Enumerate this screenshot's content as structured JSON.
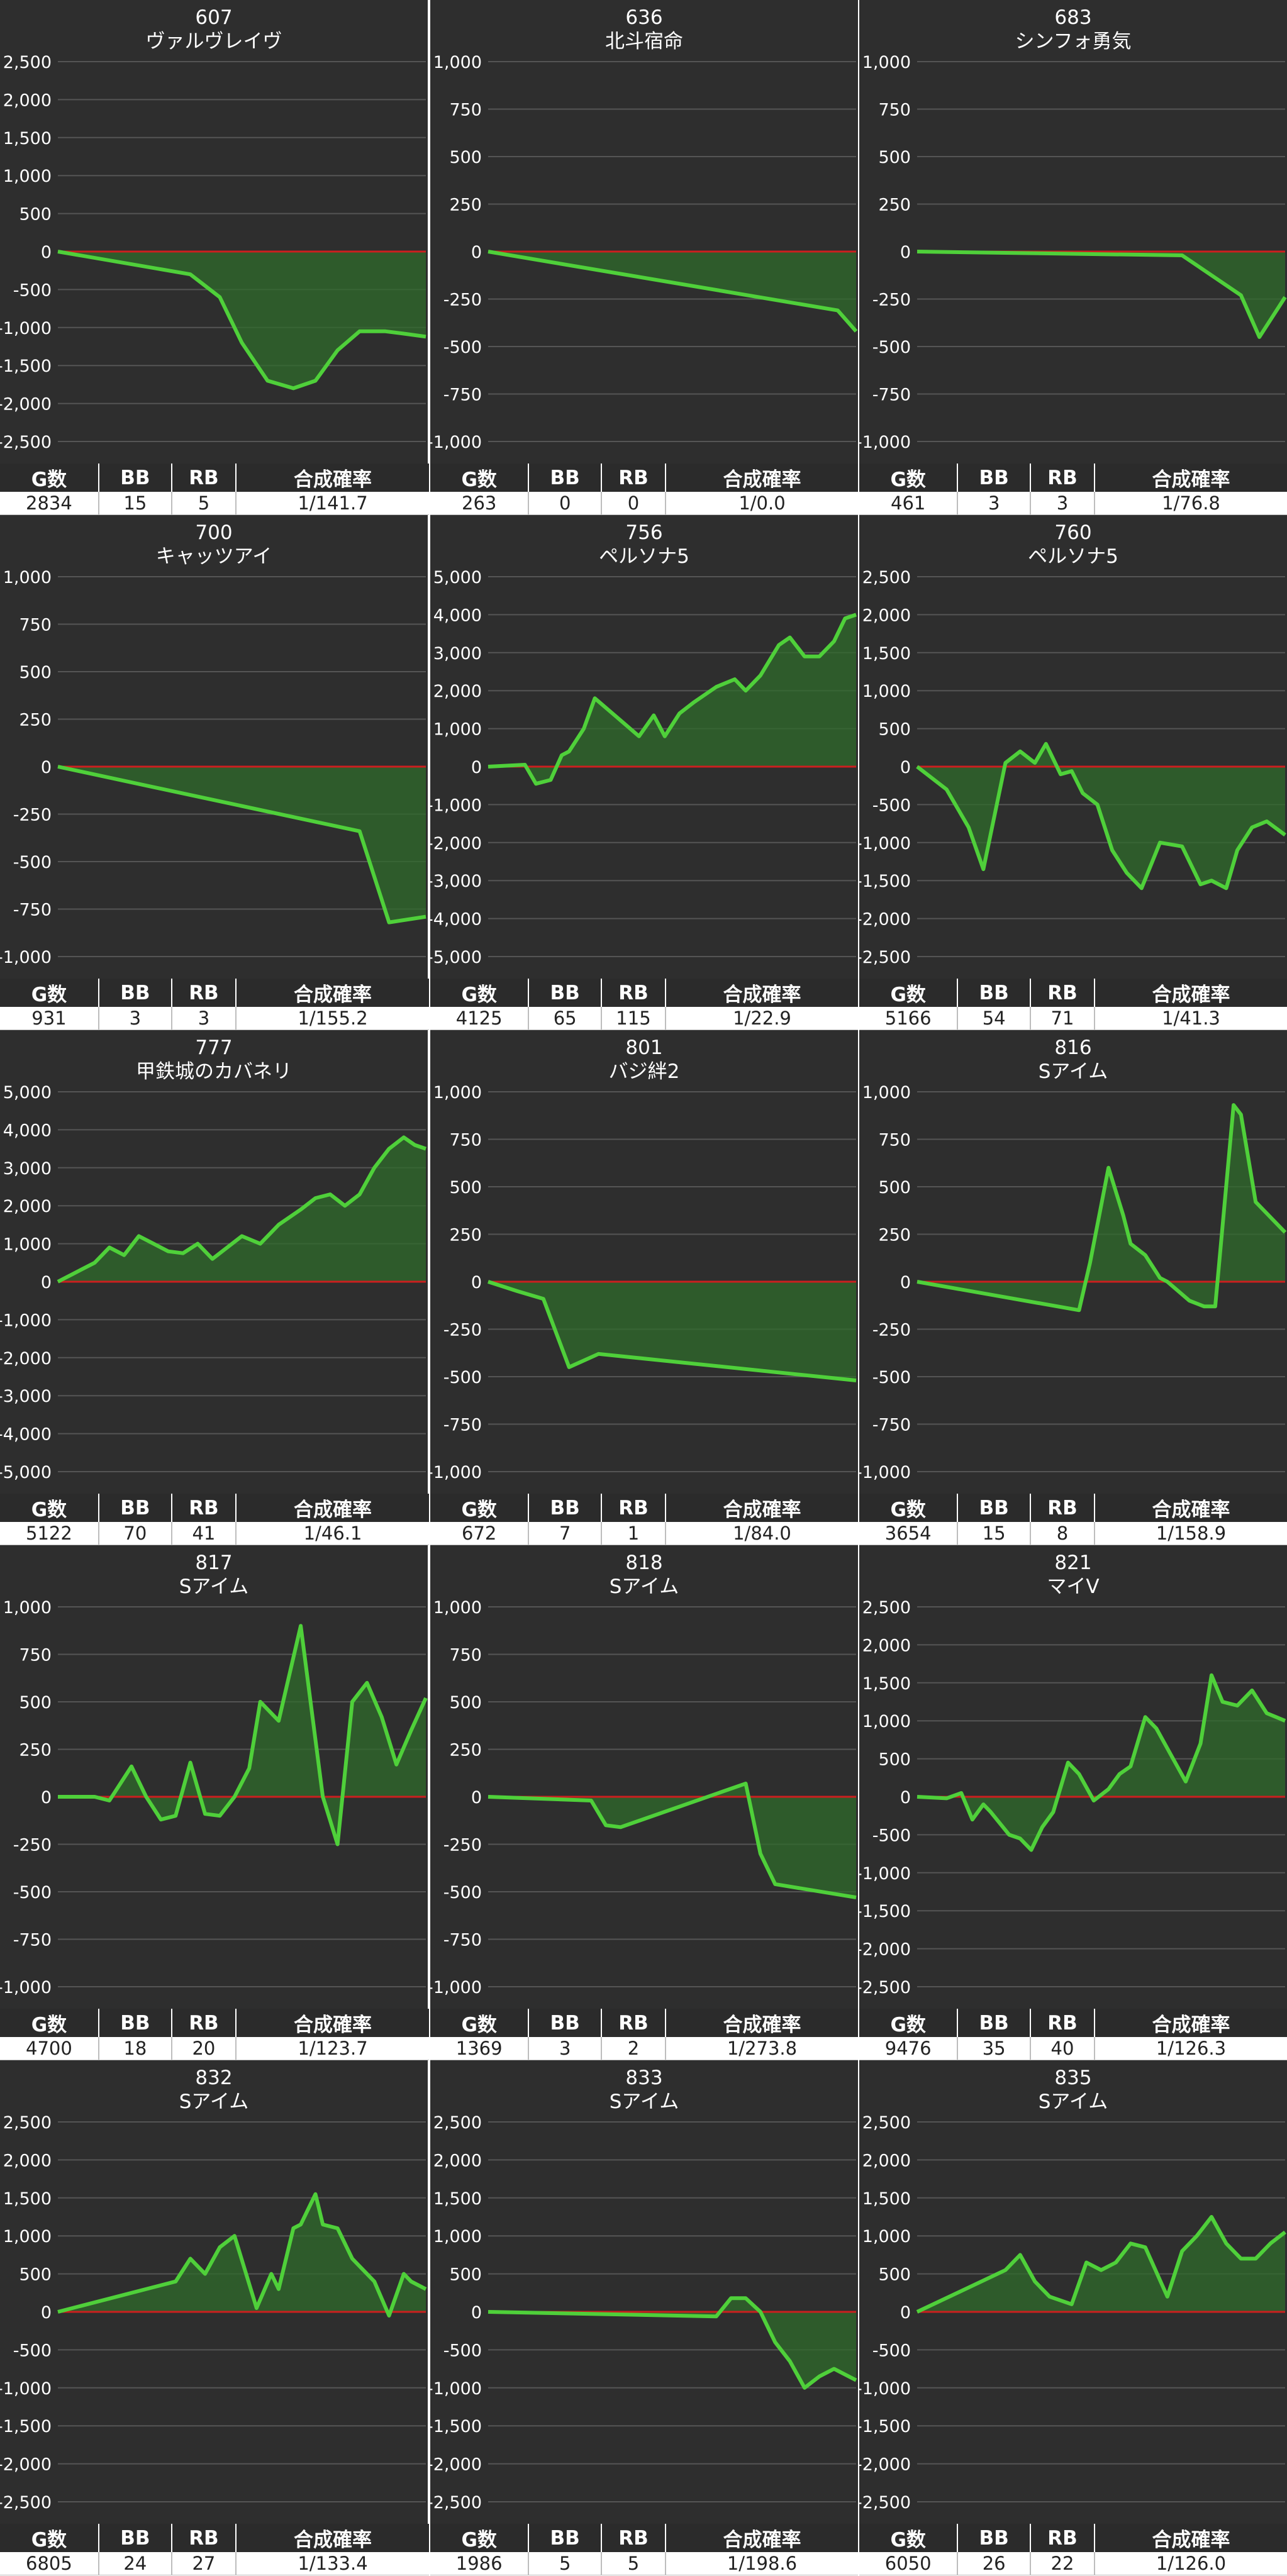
{
  "stats_headers": {
    "games": "G数",
    "bb": "BB",
    "rb": "RB",
    "rate": "合成確率"
  },
  "colors": {
    "background": "#2e2e2e",
    "grid": "#555555",
    "zero_line": "#cc1f1f",
    "series_line": "#4fd03a",
    "area_fill": "#2f6b2b",
    "text": "#ffffff"
  },
  "chart_data": [
    {
      "type": "area",
      "title": "607",
      "subtitle": "ヴァルヴレイヴ",
      "ylim": [
        -2500,
        2500
      ],
      "yticks": [
        2500,
        2000,
        1500,
        1000,
        500,
        0,
        -500,
        -1000,
        -1500,
        -2000,
        -2500
      ],
      "ytick_labels": [
        "2,500",
        "2,000",
        "1,500",
        "1,000",
        "500",
        "0",
        "-500",
        "-1,000",
        "-1,500",
        "-2,000",
        "-2,500"
      ],
      "x": [
        0,
        0.36,
        0.44,
        0.5,
        0.57,
        0.64,
        0.7,
        0.76,
        0.82,
        0.89,
        0.94,
        1.0
      ],
      "y": [
        0,
        -300,
        -600,
        -1200,
        -1700,
        -1800,
        -1700,
        -1300,
        -1050,
        -1050,
        -1080,
        -1120
      ],
      "stats": {
        "games": "2834",
        "bb": "15",
        "rb": "5",
        "rate": "1/141.7"
      }
    },
    {
      "type": "area",
      "title": "636",
      "subtitle": "北斗宿命",
      "ylim": [
        -1000,
        1000
      ],
      "yticks": [
        1000,
        750,
        500,
        250,
        0,
        -250,
        -500,
        -750,
        -1000
      ],
      "ytick_labels": [
        "1,000",
        "750",
        "500",
        "250",
        "0",
        "-250",
        "-500",
        "-750",
        "-1,000"
      ],
      "x": [
        0,
        0.95,
        1.0
      ],
      "y": [
        0,
        -310,
        -420
      ],
      "stats": {
        "games": "263",
        "bb": "0",
        "rb": "0",
        "rate": "1/0.0"
      }
    },
    {
      "type": "area",
      "title": "683",
      "subtitle": "シンフォ勇気",
      "ylim": [
        -1000,
        1000
      ],
      "yticks": [
        1000,
        750,
        500,
        250,
        0,
        -250,
        -500,
        -750,
        -1000
      ],
      "ytick_labels": [
        "1,000",
        "750",
        "500",
        "250",
        "0",
        "-250",
        "-500",
        "-750",
        "-1,000"
      ],
      "x": [
        0,
        0.72,
        0.88,
        0.93,
        1.0
      ],
      "y": [
        0,
        -20,
        -230,
        -450,
        -240
      ],
      "stats": {
        "games": "461",
        "bb": "3",
        "rb": "3",
        "rate": "1/76.8"
      }
    },
    {
      "type": "area",
      "title": "700",
      "subtitle": "キャッツアイ",
      "ylim": [
        -1000,
        1000
      ],
      "yticks": [
        1000,
        750,
        500,
        250,
        0,
        -250,
        -500,
        -750,
        -1000
      ],
      "ytick_labels": [
        "1,000",
        "750",
        "500",
        "250",
        "0",
        "-250",
        "-500",
        "-750",
        "-1,000"
      ],
      "x": [
        0,
        0.82,
        0.9,
        1.0
      ],
      "y": [
        0,
        -340,
        -820,
        -790
      ],
      "stats": {
        "games": "931",
        "bb": "3",
        "rb": "3",
        "rate": "1/155.2"
      }
    },
    {
      "type": "area",
      "title": "756",
      "subtitle": "ペルソナ5",
      "ylim": [
        -5000,
        5000
      ],
      "yticks": [
        5000,
        4000,
        3000,
        2000,
        1000,
        0,
        -1000,
        -2000,
        -3000,
        -4000,
        -5000
      ],
      "ytick_labels": [
        "5,000",
        "4,000",
        "3,000",
        "2,000",
        "1,000",
        "0",
        "-1,000",
        "-2,000",
        "-3,000",
        "-4,000",
        "-5,000"
      ],
      "x": [
        0,
        0.1,
        0.13,
        0.17,
        0.2,
        0.22,
        0.26,
        0.29,
        0.35,
        0.41,
        0.45,
        0.48,
        0.52,
        0.56,
        0.62,
        0.67,
        0.7,
        0.74,
        0.79,
        0.82,
        0.86,
        0.9,
        0.94,
        0.97,
        1.0
      ],
      "y": [
        0,
        50,
        -450,
        -350,
        300,
        400,
        1000,
        1800,
        1300,
        800,
        1350,
        800,
        1400,
        1700,
        2100,
        2300,
        2000,
        2400,
        3200,
        3400,
        2900,
        2900,
        3300,
        3900,
        4000
      ],
      "stats": {
        "games": "4125",
        "bb": "65",
        "rb": "115",
        "rate": "1/22.9"
      }
    },
    {
      "type": "area",
      "title": "760",
      "subtitle": "ペルソナ5",
      "ylim": [
        -2500,
        2500
      ],
      "yticks": [
        2500,
        2000,
        1500,
        1000,
        500,
        0,
        -500,
        -1000,
        -1500,
        -2000,
        -2500
      ],
      "ytick_labels": [
        "2,500",
        "2,000",
        "1,500",
        "1,000",
        "500",
        "0",
        "-500",
        "-1,000",
        "-1,500",
        "-2,000",
        "-2,500"
      ],
      "x": [
        0,
        0.08,
        0.14,
        0.18,
        0.24,
        0.28,
        0.32,
        0.35,
        0.39,
        0.42,
        0.45,
        0.49,
        0.53,
        0.57,
        0.61,
        0.66,
        0.72,
        0.77,
        0.8,
        0.84,
        0.87,
        0.91,
        0.95,
        1.0
      ],
      "y": [
        0,
        -300,
        -800,
        -1350,
        50,
        200,
        50,
        300,
        -100,
        -60,
        -350,
        -500,
        -1100,
        -1400,
        -1600,
        -1000,
        -1050,
        -1550,
        -1500,
        -1600,
        -1100,
        -800,
        -720,
        -900
      ],
      "stats": {
        "games": "5166",
        "bb": "54",
        "rb": "71",
        "rate": "1/41.3"
      }
    },
    {
      "type": "area",
      "title": "777",
      "subtitle": "甲鉄城のカバネリ",
      "ylim": [
        -5000,
        5000
      ],
      "yticks": [
        5000,
        4000,
        3000,
        2000,
        1000,
        0,
        -1000,
        -2000,
        -3000,
        -4000,
        -5000
      ],
      "ytick_labels": [
        "5,000",
        "4,000",
        "3,000",
        "2,000",
        "1,000",
        "0",
        "-1,000",
        "-2,000",
        "-3,000",
        "-4,000",
        "-5,000"
      ],
      "x": [
        0,
        0.04,
        0.1,
        0.14,
        0.18,
        0.22,
        0.26,
        0.3,
        0.34,
        0.38,
        0.42,
        0.46,
        0.5,
        0.55,
        0.6,
        0.66,
        0.7,
        0.74,
        0.78,
        0.82,
        0.86,
        0.9,
        0.94,
        0.97,
        1.0
      ],
      "y": [
        0,
        200,
        500,
        900,
        700,
        1200,
        1000,
        800,
        750,
        1000,
        600,
        900,
        1200,
        1000,
        1500,
        1900,
        2200,
        2300,
        2000,
        2300,
        3000,
        3500,
        3800,
        3600,
        3500
      ],
      "stats": {
        "games": "5122",
        "bb": "70",
        "rb": "41",
        "rate": "1/46.1"
      }
    },
    {
      "type": "area",
      "title": "801",
      "subtitle": "バジ絆2",
      "ylim": [
        -1000,
        1000
      ],
      "yticks": [
        1000,
        750,
        500,
        250,
        0,
        -250,
        -500,
        -750,
        -1000
      ],
      "ytick_labels": [
        "1,000",
        "750",
        "500",
        "250",
        "0",
        "-250",
        "-500",
        "-750",
        "-1,000"
      ],
      "x": [
        0,
        0.08,
        0.15,
        0.22,
        0.3,
        1.0
      ],
      "y": [
        0,
        -50,
        -90,
        -450,
        -380,
        -520
      ],
      "stats": {
        "games": "672",
        "bb": "7",
        "rb": "1",
        "rate": "1/84.0"
      }
    },
    {
      "type": "area",
      "title": "816",
      "subtitle": "Sアイム",
      "ylim": [
        -1000,
        1000
      ],
      "yticks": [
        1000,
        750,
        500,
        250,
        0,
        -250,
        -500,
        -750,
        -1000
      ],
      "ytick_labels": [
        "1,000",
        "750",
        "500",
        "250",
        "0",
        "-250",
        "-500",
        "-750",
        "-1,000"
      ],
      "x": [
        0,
        0.44,
        0.47,
        0.52,
        0.56,
        0.58,
        0.62,
        0.66,
        0.68,
        0.74,
        0.78,
        0.81,
        0.86,
        0.88,
        0.92,
        1.0
      ],
      "y": [
        0,
        -150,
        100,
        600,
        350,
        200,
        140,
        20,
        0,
        -100,
        -130,
        -130,
        930,
        880,
        420,
        260
      ],
      "stats": {
        "games": "3654",
        "bb": "15",
        "rb": "8",
        "rate": "1/158.9"
      }
    },
    {
      "type": "area",
      "title": "817",
      "subtitle": "Sアイム",
      "ylim": [
        -1000,
        1000
      ],
      "yticks": [
        1000,
        750,
        500,
        250,
        0,
        -250,
        -500,
        -750,
        -1000
      ],
      "ytick_labels": [
        "1,000",
        "750",
        "500",
        "250",
        "0",
        "-250",
        "-500",
        "-750",
        "-1,000"
      ],
      "x": [
        0,
        0.1,
        0.14,
        0.2,
        0.24,
        0.28,
        0.32,
        0.36,
        0.4,
        0.44,
        0.48,
        0.52,
        0.55,
        0.6,
        0.66,
        0.72,
        0.76,
        0.8,
        0.84,
        0.88,
        0.92,
        0.96,
        1.0
      ],
      "y": [
        0,
        0,
        -20,
        160,
        0,
        -120,
        -100,
        180,
        -90,
        -100,
        0,
        150,
        500,
        400,
        900,
        0,
        -250,
        500,
        600,
        420,
        170,
        350,
        520
      ],
      "stats": {
        "games": "4700",
        "bb": "18",
        "rb": "20",
        "rate": "1/123.7"
      }
    },
    {
      "type": "area",
      "title": "818",
      "subtitle": "Sアイム",
      "ylim": [
        -1000,
        1000
      ],
      "yticks": [
        1000,
        750,
        500,
        250,
        0,
        -250,
        -500,
        -750,
        -1000
      ],
      "ytick_labels": [
        "1,000",
        "750",
        "500",
        "250",
        "0",
        "-250",
        "-500",
        "-750",
        "-1,000"
      ],
      "x": [
        0,
        0.28,
        0.32,
        0.36,
        0.7,
        0.74,
        0.78,
        1.0
      ],
      "y": [
        0,
        -20,
        -150,
        -160,
        70,
        -300,
        -460,
        -530
      ],
      "stats": {
        "games": "1369",
        "bb": "3",
        "rb": "2",
        "rate": "1/273.8"
      }
    },
    {
      "type": "area",
      "title": "821",
      "subtitle": "マイV",
      "ylim": [
        -2500,
        2500
      ],
      "yticks": [
        2500,
        2000,
        1500,
        1000,
        500,
        0,
        -500,
        -1000,
        -1500,
        -2000,
        -2500
      ],
      "ytick_labels": [
        "2,500",
        "2,000",
        "1,500",
        "1,000",
        "500",
        "0",
        "-500",
        "-1,000",
        "-1,500",
        "-2,000",
        "-2,500"
      ],
      "x": [
        0,
        0.08,
        0.12,
        0.15,
        0.18,
        0.2,
        0.25,
        0.28,
        0.31,
        0.34,
        0.37,
        0.41,
        0.44,
        0.48,
        0.52,
        0.55,
        0.58,
        0.62,
        0.65,
        0.69,
        0.73,
        0.77,
        0.8,
        0.83,
        0.87,
        0.91,
        0.95,
        1.0
      ],
      "y": [
        0,
        -20,
        50,
        -300,
        -100,
        -200,
        -500,
        -550,
        -700,
        -400,
        -200,
        450,
        300,
        -50,
        100,
        300,
        400,
        1050,
        900,
        550,
        200,
        700,
        1600,
        1250,
        1200,
        1400,
        1100,
        1000
      ],
      "stats": {
        "games": "9476",
        "bb": "35",
        "rb": "40",
        "rate": "1/126.3"
      }
    },
    {
      "type": "area",
      "title": "832",
      "subtitle": "Sアイム",
      "ylim": [
        -2500,
        2500
      ],
      "yticks": [
        2500,
        2000,
        1500,
        1000,
        500,
        0,
        -500,
        -1000,
        -1500,
        -2000,
        -2500
      ],
      "ytick_labels": [
        "2,500",
        "2,000",
        "1,500",
        "1,000",
        "500",
        "0",
        "-500",
        "-1,000",
        "-1,500",
        "-2,000",
        "-2,500"
      ],
      "x": [
        0,
        0.32,
        0.36,
        0.4,
        0.44,
        0.48,
        0.54,
        0.58,
        0.6,
        0.64,
        0.66,
        0.7,
        0.72,
        0.76,
        0.8,
        0.86,
        0.9,
        0.94,
        0.96,
        1.0
      ],
      "y": [
        0,
        400,
        700,
        500,
        850,
        1000,
        50,
        500,
        300,
        1100,
        1150,
        1550,
        1150,
        1100,
        700,
        400,
        -50,
        500,
        400,
        300
      ],
      "stats": {
        "games": "6805",
        "bb": "24",
        "rb": "27",
        "rate": "1/133.4"
      }
    },
    {
      "type": "area",
      "title": "833",
      "subtitle": "Sアイム",
      "ylim": [
        -2500,
        2500
      ],
      "yticks": [
        2500,
        2000,
        1500,
        1000,
        500,
        0,
        -500,
        -1000,
        -1500,
        -2000,
        -2500
      ],
      "ytick_labels": [
        "2,500",
        "2,000",
        "1,500",
        "1,000",
        "500",
        "0",
        "-500",
        "-1,000",
        "-1,500",
        "-2,000",
        "-2,500"
      ],
      "x": [
        0,
        0.62,
        0.66,
        0.7,
        0.74,
        0.78,
        0.82,
        0.86,
        0.9,
        0.94,
        1.0
      ],
      "y": [
        0,
        -60,
        180,
        180,
        0,
        -400,
        -650,
        -1000,
        -850,
        -750,
        -900
      ],
      "stats": {
        "games": "1986",
        "bb": "5",
        "rb": "5",
        "rate": "1/198.6"
      }
    },
    {
      "type": "area",
      "title": "835",
      "subtitle": "Sアイム",
      "ylim": [
        -2500,
        2500
      ],
      "yticks": [
        2500,
        2000,
        1500,
        1000,
        500,
        0,
        -500,
        -1000,
        -1500,
        -2000,
        -2500
      ],
      "ytick_labels": [
        "2,500",
        "2,000",
        "1,500",
        "1,000",
        "500",
        "0",
        "-500",
        "-1,000",
        "-1,500",
        "-2,000",
        "-2,500"
      ],
      "x": [
        0,
        0.24,
        0.28,
        0.32,
        0.36,
        0.42,
        0.46,
        0.5,
        0.54,
        0.58,
        0.62,
        0.68,
        0.72,
        0.76,
        0.8,
        0.84,
        0.88,
        0.92,
        0.96,
        1.0
      ],
      "y": [
        0,
        550,
        750,
        400,
        200,
        100,
        650,
        550,
        650,
        900,
        850,
        200,
        800,
        1000,
        1250,
        900,
        700,
        700,
        900,
        1050
      ],
      "stats": {
        "games": "6050",
        "bb": "26",
        "rb": "22",
        "rate": "1/126.0"
      }
    }
  ]
}
